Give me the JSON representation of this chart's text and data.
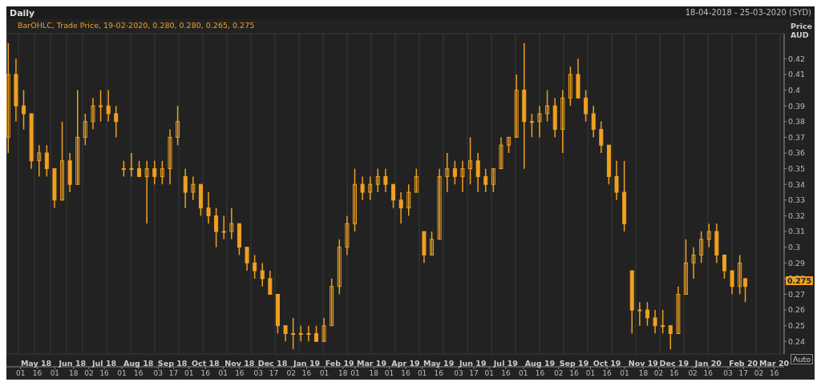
{
  "chart_data": {
    "type": "candlestick",
    "title": "Daily",
    "subtitle": "18-04-2018 - 25-03-2020 (SYD)",
    "ylabel": "Price AUD",
    "annotations": [
      "BarOHLC, Trade Price, 19-02-2020, 0.280, 0.280, 0.265, 0.275",
      "0.275",
      "Auto"
    ],
    "color": "#f0a020",
    "grid": true,
    "x": [
      "2018-04-20",
      "2018-04-27",
      "2018-05-04",
      "2018-05-11",
      "2018-05-18",
      "2018-05-25",
      "2018-06-01",
      "2018-06-08",
      "2018-06-15",
      "2018-06-22",
      "2018-06-29",
      "2018-07-06",
      "2018-07-13",
      "2018-07-20",
      "2018-07-27",
      "2018-08-03",
      "2018-08-10",
      "2018-08-17",
      "2018-08-24",
      "2018-08-31",
      "2018-09-07",
      "2018-09-14",
      "2018-09-21",
      "2018-09-28",
      "2018-10-05",
      "2018-10-12",
      "2018-10-19",
      "2018-10-26",
      "2018-11-02",
      "2018-11-09",
      "2018-11-16",
      "2018-11-23",
      "2018-11-30",
      "2018-12-07",
      "2018-12-14",
      "2018-12-21",
      "2018-12-28",
      "2019-01-04",
      "2019-01-11",
      "2019-01-18",
      "2019-01-25",
      "2019-02-01",
      "2019-02-08",
      "2019-02-15",
      "2019-02-22",
      "2019-03-01",
      "2019-03-08",
      "2019-03-15",
      "2019-03-22",
      "2019-03-29",
      "2019-04-05",
      "2019-04-12",
      "2019-04-19",
      "2019-04-26",
      "2019-05-03",
      "2019-05-10",
      "2019-05-17",
      "2019-05-24",
      "2019-05-31",
      "2019-06-07",
      "2019-06-14",
      "2019-06-21",
      "2019-06-28",
      "2019-07-05",
      "2019-07-12",
      "2019-07-19",
      "2019-07-26",
      "2019-08-02",
      "2019-08-09",
      "2019-08-16",
      "2019-08-23",
      "2019-08-30",
      "2019-09-06",
      "2019-09-13",
      "2019-09-20",
      "2019-09-27",
      "2019-10-04",
      "2019-10-11",
      "2019-10-18",
      "2019-10-25",
      "2019-11-01",
      "2019-11-08",
      "2019-11-15",
      "2019-11-22",
      "2019-11-29",
      "2019-12-06",
      "2019-12-13",
      "2019-12-20",
      "2019-12-27",
      "2020-01-03",
      "2020-01-10",
      "2020-01-17",
      "2020-01-24",
      "2020-01-31",
      "2020-02-07",
      "2020-02-14",
      "2020-02-19"
    ],
    "ohlc": [
      [
        0.37,
        0.43,
        0.36,
        0.41
      ],
      [
        0.41,
        0.42,
        0.38,
        0.39
      ],
      [
        0.39,
        0.4,
        0.375,
        0.385
      ],
      [
        0.385,
        0.385,
        0.35,
        0.355
      ],
      [
        0.355,
        0.365,
        0.345,
        0.36
      ],
      [
        0.36,
        0.365,
        0.345,
        0.35
      ],
      [
        0.35,
        0.35,
        0.325,
        0.33
      ],
      [
        0.33,
        0.38,
        0.33,
        0.355
      ],
      [
        0.355,
        0.36,
        0.335,
        0.34
      ],
      [
        0.34,
        0.4,
        0.34,
        0.37
      ],
      [
        0.37,
        0.385,
        0.365,
        0.38
      ],
      [
        0.38,
        0.395,
        0.375,
        0.39
      ],
      [
        0.39,
        0.4,
        0.38,
        0.39
      ],
      [
        0.39,
        0.4,
        0.38,
        0.385
      ],
      [
        0.385,
        0.39,
        0.37,
        0.38
      ],
      [
        0.35,
        0.355,
        0.345,
        0.35
      ],
      [
        0.35,
        0.36,
        0.345,
        0.35
      ],
      [
        0.35,
        0.355,
        0.345,
        0.345
      ],
      [
        0.345,
        0.355,
        0.315,
        0.35
      ],
      [
        0.35,
        0.355,
        0.34,
        0.345
      ],
      [
        0.345,
        0.355,
        0.34,
        0.35
      ],
      [
        0.35,
        0.375,
        0.34,
        0.37
      ],
      [
        0.37,
        0.39,
        0.365,
        0.38
      ],
      [
        0.345,
        0.35,
        0.325,
        0.335
      ],
      [
        0.335,
        0.345,
        0.33,
        0.34
      ],
      [
        0.34,
        0.34,
        0.32,
        0.325
      ],
      [
        0.325,
        0.335,
        0.315,
        0.32
      ],
      [
        0.32,
        0.325,
        0.3,
        0.31
      ],
      [
        0.31,
        0.32,
        0.305,
        0.31
      ],
      [
        0.31,
        0.325,
        0.305,
        0.315
      ],
      [
        0.315,
        0.315,
        0.295,
        0.3
      ],
      [
        0.3,
        0.3,
        0.285,
        0.29
      ],
      [
        0.29,
        0.295,
        0.28,
        0.285
      ],
      [
        0.285,
        0.29,
        0.275,
        0.28
      ],
      [
        0.28,
        0.285,
        0.27,
        0.27
      ],
      [
        0.27,
        0.27,
        0.245,
        0.25
      ],
      [
        0.25,
        0.25,
        0.24,
        0.245
      ],
      [
        0.245,
        0.255,
        0.235,
        0.245
      ],
      [
        0.245,
        0.25,
        0.24,
        0.245
      ],
      [
        0.245,
        0.25,
        0.24,
        0.245
      ],
      [
        0.245,
        0.25,
        0.24,
        0.24
      ],
      [
        0.24,
        0.255,
        0.24,
        0.25
      ],
      [
        0.25,
        0.28,
        0.25,
        0.275
      ],
      [
        0.275,
        0.305,
        0.27,
        0.3
      ],
      [
        0.3,
        0.32,
        0.295,
        0.315
      ],
      [
        0.315,
        0.35,
        0.31,
        0.34
      ],
      [
        0.34,
        0.345,
        0.33,
        0.335
      ],
      [
        0.335,
        0.345,
        0.33,
        0.34
      ],
      [
        0.34,
        0.35,
        0.335,
        0.345
      ],
      [
        0.345,
        0.35,
        0.335,
        0.34
      ],
      [
        0.34,
        0.34,
        0.325,
        0.33
      ],
      [
        0.33,
        0.335,
        0.315,
        0.325
      ],
      [
        0.325,
        0.34,
        0.32,
        0.335
      ],
      [
        0.335,
        0.35,
        0.335,
        0.345
      ],
      [
        0.31,
        0.31,
        0.29,
        0.295
      ],
      [
        0.295,
        0.31,
        0.295,
        0.305
      ],
      [
        0.305,
        0.35,
        0.305,
        0.345
      ],
      [
        0.345,
        0.36,
        0.335,
        0.35
      ],
      [
        0.35,
        0.355,
        0.34,
        0.345
      ],
      [
        0.345,
        0.355,
        0.335,
        0.35
      ],
      [
        0.35,
        0.37,
        0.34,
        0.355
      ],
      [
        0.355,
        0.36,
        0.335,
        0.345
      ],
      [
        0.345,
        0.35,
        0.335,
        0.34
      ],
      [
        0.34,
        0.35,
        0.335,
        0.35
      ],
      [
        0.35,
        0.37,
        0.35,
        0.365
      ],
      [
        0.365,
        0.37,
        0.36,
        0.37
      ],
      [
        0.37,
        0.41,
        0.37,
        0.4
      ],
      [
        0.4,
        0.43,
        0.35,
        0.38
      ],
      [
        0.38,
        0.385,
        0.37,
        0.38
      ],
      [
        0.38,
        0.39,
        0.37,
        0.385
      ],
      [
        0.385,
        0.4,
        0.38,
        0.39
      ],
      [
        0.39,
        0.395,
        0.37,
        0.375
      ],
      [
        0.375,
        0.4,
        0.36,
        0.395
      ],
      [
        0.395,
        0.415,
        0.39,
        0.41
      ],
      [
        0.41,
        0.42,
        0.395,
        0.395
      ],
      [
        0.395,
        0.4,
        0.38,
        0.385
      ],
      [
        0.385,
        0.39,
        0.37,
        0.375
      ],
      [
        0.375,
        0.38,
        0.36,
        0.365
      ],
      [
        0.365,
        0.365,
        0.34,
        0.345
      ],
      [
        0.345,
        0.355,
        0.33,
        0.335
      ],
      [
        0.335,
        0.355,
        0.31,
        0.315
      ],
      [
        0.285,
        0.285,
        0.245,
        0.26
      ],
      [
        0.26,
        0.265,
        0.25,
        0.26
      ],
      [
        0.26,
        0.265,
        0.25,
        0.255
      ],
      [
        0.255,
        0.26,
        0.245,
        0.25
      ],
      [
        0.25,
        0.26,
        0.245,
        0.25
      ],
      [
        0.25,
        0.25,
        0.235,
        0.245
      ],
      [
        0.245,
        0.275,
        0.245,
        0.27
      ],
      [
        0.27,
        0.305,
        0.27,
        0.29
      ],
      [
        0.29,
        0.3,
        0.28,
        0.295
      ],
      [
        0.295,
        0.31,
        0.29,
        0.305
      ],
      [
        0.305,
        0.315,
        0.3,
        0.31
      ],
      [
        0.31,
        0.315,
        0.29,
        0.295
      ],
      [
        0.295,
        0.295,
        0.28,
        0.285
      ],
      [
        0.285,
        0.285,
        0.27,
        0.275
      ],
      [
        0.275,
        0.295,
        0.27,
        0.29
      ],
      [
        0.28,
        0.28,
        0.265,
        0.275
      ]
    ],
    "xlim": [
      "2018-04-18",
      "2020-03-25"
    ],
    "xticks": [
      {
        "value": "2018-05-01",
        "label": "01"
      },
      {
        "value": "2018-05-16",
        "label": "16"
      },
      {
        "value": "2018-06-01",
        "label": "01"
      },
      {
        "value": "2018-06-18",
        "label": "18"
      },
      {
        "value": "2018-07-02",
        "label": "02"
      },
      {
        "value": "2018-07-16",
        "label": "16"
      },
      {
        "value": "2018-08-01",
        "label": "01"
      },
      {
        "value": "2018-08-16",
        "label": "16"
      },
      {
        "value": "2018-09-03",
        "label": "03"
      },
      {
        "value": "2018-09-17",
        "label": "17"
      },
      {
        "value": "2018-10-01",
        "label": "01"
      },
      {
        "value": "2018-10-16",
        "label": "16"
      },
      {
        "value": "2018-11-01",
        "label": "01"
      },
      {
        "value": "2018-11-16",
        "label": "16"
      },
      {
        "value": "2018-12-03",
        "label": "03"
      },
      {
        "value": "2018-12-17",
        "label": "17"
      },
      {
        "value": "2019-01-02",
        "label": "02"
      },
      {
        "value": "2019-01-16",
        "label": "16"
      },
      {
        "value": "2019-02-01",
        "label": "01"
      },
      {
        "value": "2019-02-18",
        "label": "18"
      },
      {
        "value": "2019-03-01",
        "label": "01"
      },
      {
        "value": "2019-03-18",
        "label": "18"
      },
      {
        "value": "2019-04-01",
        "label": "01"
      },
      {
        "value": "2019-04-16",
        "label": "16"
      },
      {
        "value": "2019-05-01",
        "label": "01"
      },
      {
        "value": "2019-05-16",
        "label": "16"
      },
      {
        "value": "2019-06-03",
        "label": "03"
      },
      {
        "value": "2019-06-17",
        "label": "17"
      },
      {
        "value": "2019-07-01",
        "label": "01"
      },
      {
        "value": "2019-07-16",
        "label": "16"
      },
      {
        "value": "2019-08-01",
        "label": "01"
      },
      {
        "value": "2019-08-16",
        "label": "16"
      },
      {
        "value": "2019-09-02",
        "label": "02"
      },
      {
        "value": "2019-09-16",
        "label": "16"
      },
      {
        "value": "2019-10-01",
        "label": "01"
      },
      {
        "value": "2019-10-16",
        "label": "16"
      },
      {
        "value": "2019-11-01",
        "label": "01"
      },
      {
        "value": "2019-11-18",
        "label": "18"
      },
      {
        "value": "2019-12-02",
        "label": "02"
      },
      {
        "value": "2019-12-16",
        "label": "16"
      },
      {
        "value": "2020-01-02",
        "label": "02"
      },
      {
        "value": "2020-01-16",
        "label": "16"
      },
      {
        "value": "2020-02-03",
        "label": "03"
      },
      {
        "value": "2020-02-17",
        "label": "17"
      },
      {
        "value": "2020-03-02",
        "label": "02"
      },
      {
        "value": "2020-03-16",
        "label": "16"
      }
    ],
    "x2ticks": [
      {
        "value": "2018-05-15",
        "label": "May 18"
      },
      {
        "value": "2018-06-17",
        "label": "Jun 18"
      },
      {
        "value": "2018-07-16",
        "label": "Jul 18"
      },
      {
        "value": "2018-08-16",
        "label": "Aug 18"
      },
      {
        "value": "2018-09-16",
        "label": "Sep 18"
      },
      {
        "value": "2018-10-16",
        "label": "Oct 18"
      },
      {
        "value": "2018-11-16",
        "label": "Nov 18"
      },
      {
        "value": "2018-12-16",
        "label": "Dec 18"
      },
      {
        "value": "2019-01-16",
        "label": "Jan 19"
      },
      {
        "value": "2019-02-15",
        "label": "Feb 19"
      },
      {
        "value": "2019-03-16",
        "label": "Mar 19"
      },
      {
        "value": "2019-04-16",
        "label": "Apr 19"
      },
      {
        "value": "2019-05-16",
        "label": "May 19"
      },
      {
        "value": "2019-06-16",
        "label": "Jun 19"
      },
      {
        "value": "2019-07-16",
        "label": "Jul 19"
      },
      {
        "value": "2019-08-16",
        "label": "Aug 19"
      },
      {
        "value": "2019-09-16",
        "label": "Sep 19"
      },
      {
        "value": "2019-10-16",
        "label": "Oct 19"
      },
      {
        "value": "2019-11-18",
        "label": "Nov 19"
      },
      {
        "value": "2019-12-16",
        "label": "Dec 19"
      },
      {
        "value": "2020-01-16",
        "label": "Jan 20"
      },
      {
        "value": "2020-02-17",
        "label": "Feb 20"
      },
      {
        "value": "2020-03-16",
        "label": "Mar 20"
      }
    ],
    "x2lim": [
      "2018-04-18",
      "2020-03-25"
    ],
    "ylim": [
      0.232,
      0.436
    ],
    "yticks": [
      0.24,
      0.25,
      0.26,
      0.27,
      0.28,
      0.29,
      0.3,
      0.31,
      0.32,
      0.33,
      0.34,
      0.35,
      0.36,
      0.37,
      0.38,
      0.39,
      0.4,
      0.41,
      0.42
    ]
  }
}
